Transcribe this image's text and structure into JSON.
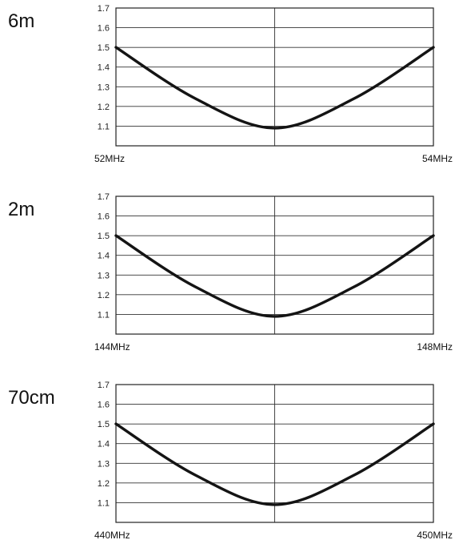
{
  "chart_data": [
    {
      "type": "line",
      "title": "6m",
      "x": [
        52,
        52.5,
        53,
        53.5,
        54
      ],
      "y": [
        1.5,
        1.24,
        1.09,
        1.24,
        1.5
      ],
      "x_tick_labels": [
        "52MHz",
        "54MHz"
      ],
      "y_ticks": [
        "1.1",
        "1.2",
        "1.3",
        "1.4",
        "1.5",
        "1.6",
        "1.7"
      ],
      "xlim": [
        52,
        54
      ],
      "ylim": [
        1.0,
        1.7
      ],
      "grid": true
    },
    {
      "type": "line",
      "title": "2m",
      "x": [
        144,
        145,
        146,
        147,
        148
      ],
      "y": [
        1.5,
        1.24,
        1.09,
        1.24,
        1.5
      ],
      "x_tick_labels": [
        "144MHz",
        "148MHz"
      ],
      "y_ticks": [
        "1.1",
        "1.2",
        "1.3",
        "1.4",
        "1.5",
        "1.6",
        "1.7"
      ],
      "xlim": [
        144,
        148
      ],
      "ylim": [
        1.0,
        1.7
      ],
      "grid": true
    },
    {
      "type": "line",
      "title": "70cm",
      "x": [
        440,
        442.5,
        445,
        447.5,
        450
      ],
      "y": [
        1.5,
        1.24,
        1.09,
        1.24,
        1.5
      ],
      "x_tick_labels": [
        "440MHz",
        "450MHz"
      ],
      "y_ticks": [
        "1.1",
        "1.2",
        "1.3",
        "1.4",
        "1.5",
        "1.6",
        "1.7"
      ],
      "xlim": [
        440,
        450
      ],
      "ylim": [
        1.0,
        1.7
      ],
      "grid": true
    }
  ]
}
